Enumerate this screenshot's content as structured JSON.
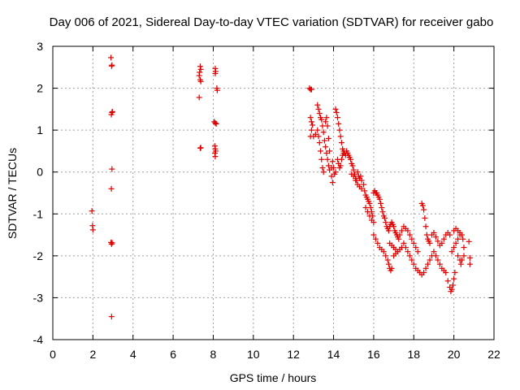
{
  "chart_data": {
    "type": "scatter",
    "title": "Day 006 of 2021, Sidereal Day-to-day VTEC variation (SDTVAR) for receiver gabo",
    "xlabel": "GPS time / hours",
    "ylabel": "SDTVAR / TECUs",
    "xlim": [
      0,
      22
    ],
    "ylim": [
      -4,
      3
    ],
    "xticks": [
      0,
      2,
      4,
      6,
      8,
      10,
      12,
      14,
      16,
      18,
      20,
      22
    ],
    "yticks": [
      -4,
      -3,
      -2,
      -1,
      0,
      1,
      2,
      3
    ],
    "grid": true,
    "marker": "+",
    "color": "#e00000",
    "series": [
      {
        "name": "SDTVAR",
        "points": [
          [
            1.95,
            -0.93
          ],
          [
            1.98,
            -1.28
          ],
          [
            2.0,
            -1.38
          ],
          [
            2.9,
            2.73
          ],
          [
            2.93,
            2.53
          ],
          [
            2.95,
            2.55
          ],
          [
            2.92,
            1.37
          ],
          [
            2.95,
            1.42
          ],
          [
            2.97,
            1.44
          ],
          [
            2.95,
            0.07
          ],
          [
            2.92,
            -0.4
          ],
          [
            2.9,
            -1.68
          ],
          [
            2.93,
            -1.72
          ],
          [
            2.96,
            -1.69
          ],
          [
            2.93,
            -3.45
          ],
          [
            7.35,
            2.52
          ],
          [
            7.38,
            2.45
          ],
          [
            7.32,
            2.38
          ],
          [
            7.3,
            2.3
          ],
          [
            7.35,
            2.2
          ],
          [
            7.38,
            2.16
          ],
          [
            7.3,
            1.78
          ],
          [
            7.35,
            0.57
          ],
          [
            7.38,
            0.58
          ],
          [
            8.1,
            2.47
          ],
          [
            8.12,
            2.4
          ],
          [
            8.1,
            2.35
          ],
          [
            8.18,
            2.0
          ],
          [
            8.2,
            1.95
          ],
          [
            8.05,
            1.2
          ],
          [
            8.1,
            1.17
          ],
          [
            8.15,
            1.15
          ],
          [
            8.08,
            0.62
          ],
          [
            8.1,
            0.55
          ],
          [
            8.12,
            0.5
          ],
          [
            8.08,
            0.45
          ],
          [
            8.1,
            0.37
          ],
          [
            12.8,
            2.0
          ],
          [
            12.85,
            1.97
          ],
          [
            12.9,
            1.97
          ],
          [
            12.85,
            1.3
          ],
          [
            12.9,
            1.2
          ],
          [
            12.95,
            1.12
          ],
          [
            12.9,
            1.0
          ],
          [
            12.85,
            0.85
          ],
          [
            13.0,
            0.85
          ],
          [
            13.1,
            0.9
          ],
          [
            13.2,
            1.6
          ],
          [
            13.25,
            1.5
          ],
          [
            13.3,
            1.4
          ],
          [
            13.35,
            1.3
          ],
          [
            13.4,
            1.25
          ],
          [
            13.45,
            1.1
          ],
          [
            13.5,
            0.95
          ],
          [
            13.55,
            0.75
          ],
          [
            13.6,
            0.6
          ],
          [
            13.65,
            0.45
          ],
          [
            13.7,
            0.3
          ],
          [
            13.75,
            0.15
          ],
          [
            13.8,
            0.05
          ],
          [
            13.2,
            1.0
          ],
          [
            13.25,
            0.85
          ],
          [
            13.3,
            0.7
          ],
          [
            13.35,
            0.5
          ],
          [
            13.4,
            0.3
          ],
          [
            13.45,
            0.1
          ],
          [
            13.5,
            0.0
          ],
          [
            13.6,
            1.2
          ],
          [
            13.65,
            1.3
          ],
          [
            13.7,
            1.1
          ],
          [
            13.75,
            0.8
          ],
          [
            13.8,
            0.5
          ],
          [
            13.9,
            -0.1
          ],
          [
            13.95,
            -0.25
          ],
          [
            13.9,
            0.1
          ],
          [
            13.95,
            0.25
          ],
          [
            14.0,
            0.1
          ],
          [
            14.05,
            -0.05
          ],
          [
            14.1,
            0.0
          ],
          [
            14.1,
            1.5
          ],
          [
            14.15,
            1.42
          ],
          [
            14.2,
            1.3
          ],
          [
            14.25,
            1.15
          ],
          [
            14.3,
            1.0
          ],
          [
            14.35,
            0.85
          ],
          [
            14.4,
            0.7
          ],
          [
            14.45,
            0.55
          ],
          [
            14.5,
            0.45
          ],
          [
            14.2,
            0.3
          ],
          [
            14.25,
            0.2
          ],
          [
            14.3,
            0.1
          ],
          [
            14.35,
            0.15
          ],
          [
            14.4,
            0.3
          ],
          [
            14.45,
            0.4
          ],
          [
            14.5,
            0.5
          ],
          [
            14.55,
            0.45
          ],
          [
            14.6,
            0.4
          ],
          [
            14.65,
            0.5
          ],
          [
            14.7,
            0.45
          ],
          [
            14.75,
            0.4
          ],
          [
            14.8,
            0.35
          ],
          [
            14.85,
            0.3
          ],
          [
            14.9,
            0.2
          ],
          [
            14.95,
            0.15
          ],
          [
            15.0,
            0.05
          ],
          [
            15.05,
            -0.05
          ],
          [
            15.1,
            -0.15
          ],
          [
            15.15,
            -0.2
          ],
          [
            14.9,
            -0.05
          ],
          [
            15.0,
            -0.1
          ],
          [
            15.1,
            -0.2
          ],
          [
            15.2,
            -0.3
          ],
          [
            15.3,
            -0.35
          ],
          [
            15.4,
            -0.4
          ],
          [
            15.2,
            0.0
          ],
          [
            15.25,
            -0.1
          ],
          [
            15.3,
            -0.15
          ],
          [
            15.35,
            -0.1
          ],
          [
            15.4,
            -0.2
          ],
          [
            15.5,
            -0.3
          ],
          [
            15.55,
            -0.45
          ],
          [
            15.6,
            -0.55
          ],
          [
            15.65,
            -0.6
          ],
          [
            15.7,
            -0.65
          ],
          [
            15.75,
            -0.7
          ],
          [
            15.8,
            -0.75
          ],
          [
            15.85,
            -0.85
          ],
          [
            15.9,
            -0.95
          ],
          [
            15.95,
            -1.05
          ],
          [
            16.0,
            -1.2
          ],
          [
            15.6,
            -0.85
          ],
          [
            15.7,
            -0.95
          ],
          [
            15.8,
            -1.05
          ],
          [
            15.9,
            -1.15
          ],
          [
            16.0,
            -0.5
          ],
          [
            16.05,
            -0.45
          ],
          [
            16.1,
            -0.5
          ],
          [
            16.15,
            -0.5
          ],
          [
            16.2,
            -0.55
          ],
          [
            16.25,
            -0.6
          ],
          [
            16.3,
            -0.65
          ],
          [
            16.35,
            -0.75
          ],
          [
            16.4,
            -0.85
          ],
          [
            16.45,
            -0.95
          ],
          [
            16.5,
            -1.05
          ],
          [
            16.0,
            -1.5
          ],
          [
            16.1,
            -1.6
          ],
          [
            16.2,
            -1.7
          ],
          [
            16.3,
            -1.8
          ],
          [
            16.4,
            -1.85
          ],
          [
            16.5,
            -1.9
          ],
          [
            16.6,
            -2.0
          ],
          [
            16.7,
            -2.1
          ],
          [
            16.75,
            -2.2
          ],
          [
            16.8,
            -2.3
          ],
          [
            16.85,
            -2.35
          ],
          [
            16.9,
            -2.3
          ],
          [
            16.55,
            -1.1
          ],
          [
            16.6,
            -1.2
          ],
          [
            16.65,
            -1.3
          ],
          [
            16.7,
            -1.35
          ],
          [
            16.75,
            -1.4
          ],
          [
            16.8,
            -1.3
          ],
          [
            16.85,
            -1.25
          ],
          [
            16.9,
            -1.2
          ],
          [
            16.95,
            -1.25
          ],
          [
            17.0,
            -1.3
          ],
          [
            17.05,
            -1.4
          ],
          [
            17.1,
            -1.45
          ],
          [
            17.15,
            -1.5
          ],
          [
            17.2,
            -1.55
          ],
          [
            17.25,
            -1.6
          ],
          [
            16.8,
            -1.7
          ],
          [
            16.9,
            -1.75
          ],
          [
            17.0,
            -1.8
          ],
          [
            17.1,
            -1.85
          ],
          [
            17.2,
            -1.9
          ],
          [
            17.0,
            -2.0
          ],
          [
            17.1,
            -1.95
          ],
          [
            17.2,
            -1.9
          ],
          [
            17.3,
            -1.85
          ],
          [
            17.4,
            -1.8
          ],
          [
            17.3,
            -1.5
          ],
          [
            17.4,
            -1.4
          ],
          [
            17.5,
            -1.3
          ],
          [
            17.6,
            -1.35
          ],
          [
            17.7,
            -1.4
          ],
          [
            17.5,
            -1.7
          ],
          [
            17.6,
            -1.8
          ],
          [
            17.7,
            -1.9
          ],
          [
            17.8,
            -2.0
          ],
          [
            17.9,
            -2.1
          ],
          [
            17.8,
            -1.5
          ],
          [
            17.9,
            -1.6
          ],
          [
            18.0,
            -1.7
          ],
          [
            18.1,
            -1.8
          ],
          [
            18.2,
            -1.9
          ],
          [
            18.0,
            -2.2
          ],
          [
            18.1,
            -2.3
          ],
          [
            18.2,
            -2.35
          ],
          [
            18.3,
            -2.4
          ],
          [
            18.4,
            -2.45
          ],
          [
            18.5,
            -2.4
          ],
          [
            18.4,
            -0.75
          ],
          [
            18.45,
            -0.8
          ],
          [
            18.5,
            -0.9
          ],
          [
            18.55,
            -1.1
          ],
          [
            18.6,
            -1.3
          ],
          [
            18.65,
            -1.5
          ],
          [
            18.7,
            -1.6
          ],
          [
            18.75,
            -1.65
          ],
          [
            18.8,
            -1.7
          ],
          [
            18.6,
            -2.3
          ],
          [
            18.7,
            -2.2
          ],
          [
            18.8,
            -2.1
          ],
          [
            18.9,
            -2.0
          ],
          [
            19.0,
            -1.9
          ],
          [
            18.9,
            -1.5
          ],
          [
            19.0,
            -1.45
          ],
          [
            19.1,
            -1.55
          ],
          [
            19.2,
            -1.65
          ],
          [
            19.3,
            -1.75
          ],
          [
            19.1,
            -2.0
          ],
          [
            19.2,
            -2.1
          ],
          [
            19.3,
            -2.2
          ],
          [
            19.4,
            -2.3
          ],
          [
            19.5,
            -2.35
          ],
          [
            19.4,
            -1.7
          ],
          [
            19.5,
            -1.6
          ],
          [
            19.6,
            -1.5
          ],
          [
            19.7,
            -1.45
          ],
          [
            19.8,
            -1.5
          ],
          [
            19.6,
            -2.4
          ],
          [
            19.7,
            -2.6
          ],
          [
            19.8,
            -2.75
          ],
          [
            19.85,
            -2.85
          ],
          [
            19.9,
            -2.8
          ],
          [
            19.95,
            -2.7
          ],
          [
            20.0,
            -2.55
          ],
          [
            20.05,
            -2.4
          ],
          [
            19.9,
            -1.9
          ],
          [
            20.0,
            -1.8
          ],
          [
            20.1,
            -1.7
          ],
          [
            20.2,
            -1.6
          ],
          [
            20.3,
            -1.5
          ],
          [
            20.0,
            -1.4
          ],
          [
            20.1,
            -1.35
          ],
          [
            20.2,
            -1.4
          ],
          [
            20.3,
            -1.45
          ],
          [
            20.4,
            -1.5
          ],
          [
            20.2,
            -2.0
          ],
          [
            20.3,
            -2.1
          ],
          [
            20.35,
            -2.2
          ],
          [
            20.4,
            -2.1
          ],
          [
            20.45,
            -1.6
          ],
          [
            20.5,
            -1.8
          ],
          [
            20.5,
            -2.0
          ],
          [
            20.75,
            -1.66
          ],
          [
            20.8,
            -2.05
          ],
          [
            20.8,
            -2.2
          ]
        ]
      }
    ]
  }
}
